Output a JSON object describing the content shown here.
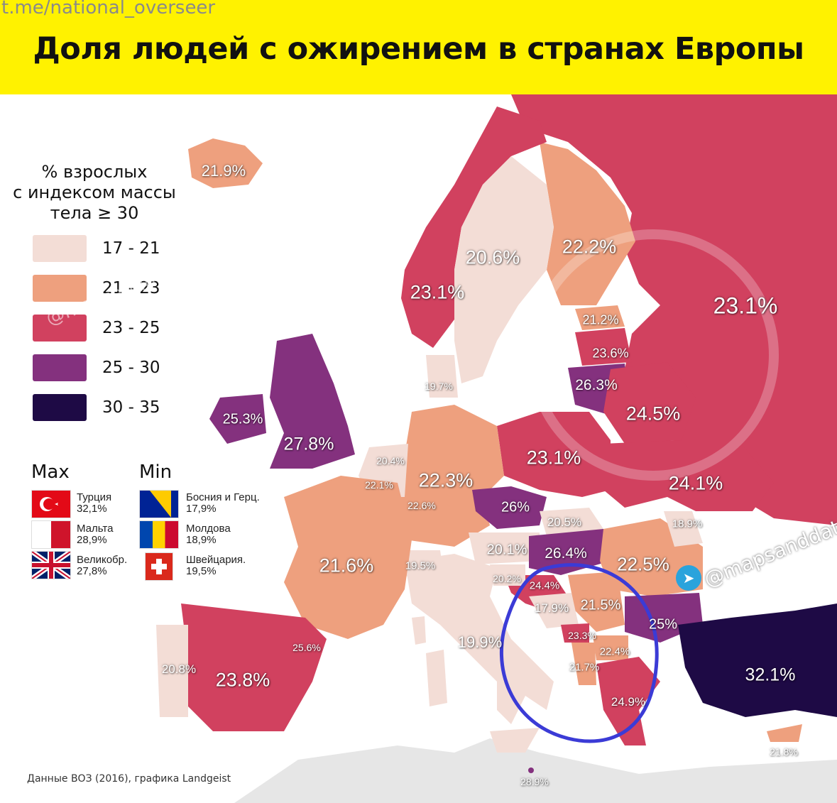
{
  "header": {
    "channel": "t.me/national_overseer",
    "title": "Доля людей с ожирением в странах Европы"
  },
  "legend": {
    "title_line1": "% взрослых",
    "title_line2": "с индексом массы",
    "title_line3": "тела ≥ 30",
    "ranges": [
      {
        "label": "17 - 21",
        "color": "#f3ddd6"
      },
      {
        "label": "21 - 23",
        "color": "#eea07e"
      },
      {
        "label": "23 - 25",
        "color": "#d1415f"
      },
      {
        "label": "25 - 30",
        "color": "#84317e"
      },
      {
        "label": "30 - 35",
        "color": "#1e0a45"
      }
    ]
  },
  "extremes": {
    "max_heading": "Max",
    "min_heading": "Min",
    "max": [
      {
        "name": "Турция",
        "value": "32,1%",
        "flag_icon": "turkey-flag-icon"
      },
      {
        "name": "Мальта",
        "value": "28,9%",
        "flag_icon": "malta-flag-icon"
      },
      {
        "name": "Великобр.",
        "value": "27,8%",
        "flag_icon": "uk-flag-icon"
      }
    ],
    "min": [
      {
        "name": "Босния и Герц.",
        "value": "17,9%",
        "flag_icon": "bosnia-flag-icon"
      },
      {
        "name": "Молдова",
        "value": "18,9%",
        "flag_icon": "moldova-flag-icon"
      },
      {
        "name": "Швейцария.",
        "value": "19,5%",
        "flag_icon": "switzerland-flag-icon"
      }
    ]
  },
  "map_labels": {
    "iceland": "21.9%",
    "sweden": "20.6%",
    "finland": "22.2%",
    "norway": "23.1%",
    "russia": "23.1%",
    "estonia": "21.2%",
    "latvia": "23.6%",
    "lithuania": "26.3%",
    "belarus": "24.5%",
    "denmark": "19.7%",
    "ireland": "25.3%",
    "uk": "27.8%",
    "netherlands": "20.4%",
    "belgium": "22.1%",
    "luxembourg": "22.6%",
    "germany": "22.3%",
    "poland": "23.1%",
    "ukraine": "24.1%",
    "czechia": "26%",
    "slovakia": "20.5%",
    "moldova": "18.9%",
    "france": "21.6%",
    "switzerland": "19.5%",
    "austria": "20.1%",
    "hungary": "26.4%",
    "romania": "22.5%",
    "slovenia": "20.2%",
    "croatia": "24.4%",
    "bosnia": "17.9%",
    "serbia": "21.5%",
    "bulgaria": "25%",
    "montenegro": "23.3%",
    "north_macedonia": "22.4%",
    "albania": "21.7%",
    "italy": "19.9%",
    "greece": "24.9%",
    "turkey": "32.1%",
    "spain": "23.8%",
    "portugal": "20.8%",
    "andorra": "25.6%",
    "cyprus": "21.8%",
    "malta": "28.9%"
  },
  "watermarks": {
    "diagonal": "@mapsanddata",
    "right": "@mapsanddata"
  },
  "footer": {
    "source": "Данные ВОЗ (2016), графика Landgeist"
  }
}
